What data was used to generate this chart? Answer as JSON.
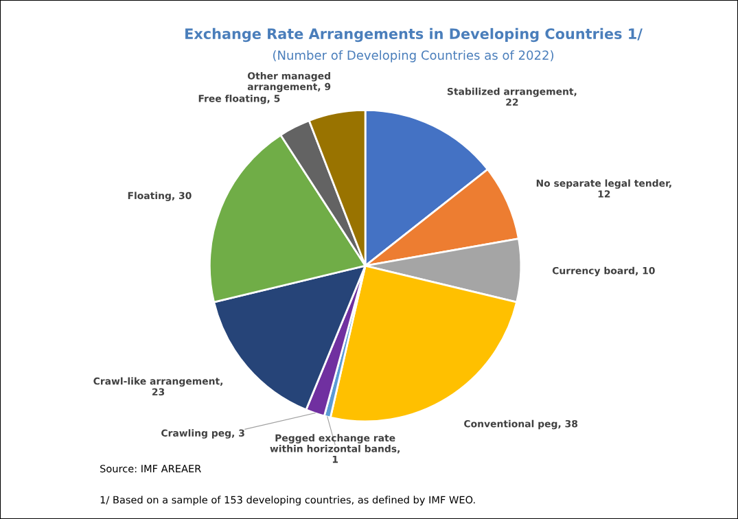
{
  "chart_data": {
    "type": "pie",
    "title": "Exchange Rate Arrangements in Developing Countries 1/",
    "subtitle": "(Number of Developing Countries as of 2022)",
    "categories": [
      "Stabilized arrangement, 22",
      "No separate legal tender, 12",
      "Currency board, 10",
      "Conventional peg, 38",
      "Pegged exchange rate within horizontal bands, 1",
      "Crawling peg, 3",
      "Crawl-like arrangement, 23",
      "Floating, 30",
      "Free floating, 5",
      "Other managed arrangement, 9"
    ],
    "values": [
      22,
      12,
      10,
      38,
      1,
      3,
      23,
      30,
      5,
      9
    ],
    "colors": [
      "#4472c4",
      "#ed7d31",
      "#a5a5a5",
      "#ffc000",
      "#5b9bd5",
      "#7030a0",
      "#264478",
      "#70ad47",
      "#636363",
      "#997300"
    ],
    "annotations": [
      "Source: IMF AREAER",
      "1/ Based on a sample of 153 developing countries, as defined by IMF WEO."
    ]
  }
}
